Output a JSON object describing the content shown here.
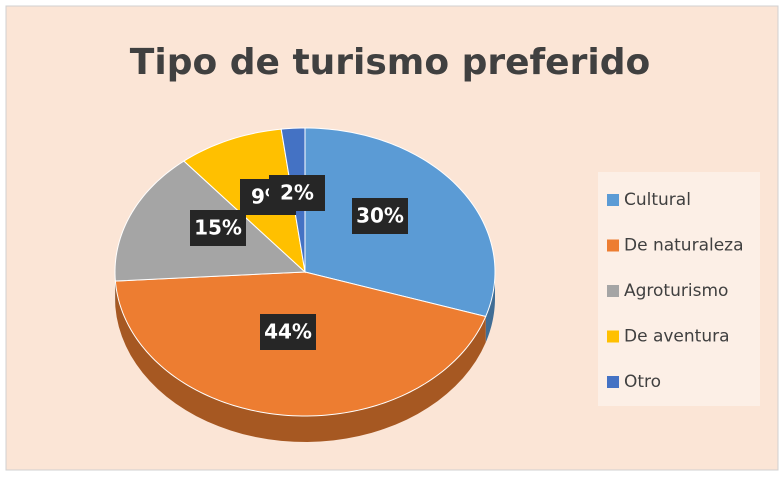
{
  "chart_data": {
    "type": "pie",
    "title": "Tipo de turismo preferido",
    "categories": [
      "Cultural",
      "De naturaleza",
      "Agroturismo",
      "De aventura",
      "Otro"
    ],
    "values": [
      30,
      44,
      15,
      9,
      2
    ],
    "value_labels": [
      "30%",
      "44%",
      "15%",
      "9%",
      "2%"
    ],
    "colors": [
      "#5b9bd5",
      "#ed7d31",
      "#a5a5a5",
      "#ffc000",
      "#4472c4"
    ],
    "legend": "right"
  }
}
